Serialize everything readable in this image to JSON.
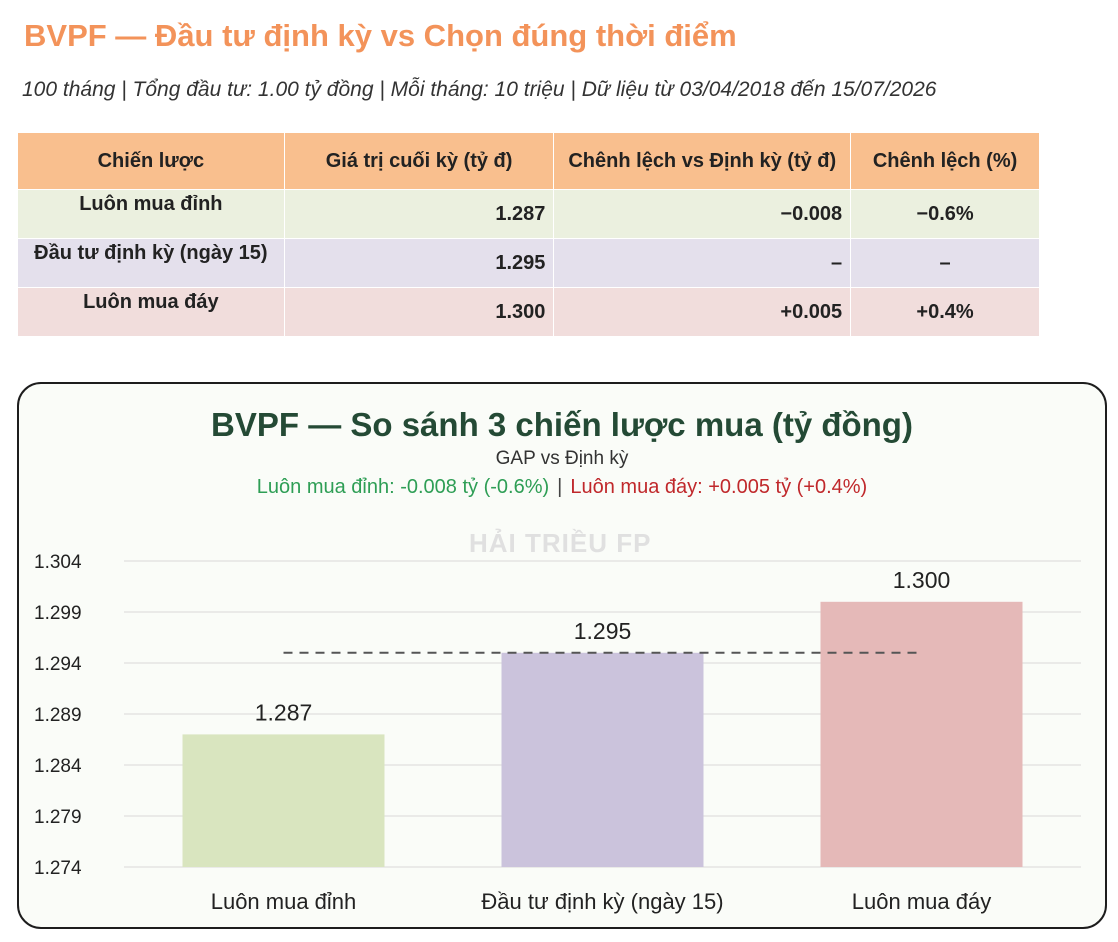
{
  "header": {
    "title": "BVPF — Đầu tư định kỳ vs Chọn đúng thời điểm",
    "subtitle": "100 tháng | Tổng đầu tư: 1.00 tỷ đồng | Mỗi tháng: 10 triệu | Dữ liệu từ 03/04/2018 đến 15/07/2026"
  },
  "table": {
    "headers": [
      "Chiến lược",
      "Giá trị cuối kỳ (tỷ đ)",
      "Chênh lệch vs Định kỳ (tỷ đ)",
      "Chênh lệch (%)"
    ],
    "rows": [
      [
        "Luôn mua đỉnh",
        "1.287",
        "−0.008",
        "−0.6%"
      ],
      [
        "Đầu tư định kỳ (ngày 15)",
        "1.295",
        "–",
        "–"
      ],
      [
        "Luôn mua đáy",
        "1.300",
        "+0.005",
        "+0.4%"
      ]
    ],
    "row_colors": [
      "#ebf0df",
      "#e4e0ec",
      "#f1dddc"
    ],
    "header_color": "#f9bf8e"
  },
  "chart": {
    "title": "BVPF — So sánh 3 chiến lược mua (tỷ đồng)",
    "subtitle": "GAP vs Định kỳ",
    "gap_top": "Luôn mua đỉnh: -0.008 tỷ (-0.6%)",
    "gap_separator": "|",
    "gap_bottom": "Luôn mua đáy: +0.005 tỷ (+0.4%)",
    "watermark": "HẢI TRIỀU FP"
  },
  "chart_data": {
    "type": "bar",
    "categories": [
      "Luôn mua đỉnh",
      "Đầu tư định kỳ (ngày 15)",
      "Luôn mua đáy"
    ],
    "values": [
      1.287,
      1.295,
      1.3
    ],
    "value_labels": [
      "1.287",
      "1.295",
      "1.300"
    ],
    "colors": [
      "#d9e5bf",
      "#cbc3dc",
      "#e5b9b8"
    ],
    "ylim": [
      1.274,
      1.304
    ],
    "yticks": [
      1.274,
      1.279,
      1.284,
      1.289,
      1.294,
      1.299,
      1.304
    ],
    "ytick_labels": [
      "1.274",
      "1.279",
      "1.284",
      "1.289",
      "1.294",
      "1.299",
      "1.304"
    ],
    "reference_line": 1.295,
    "grid": true,
    "title": "BVPF — So sánh 3 chiến lược mua (tỷ đồng)",
    "xlabel": "",
    "ylabel": ""
  }
}
